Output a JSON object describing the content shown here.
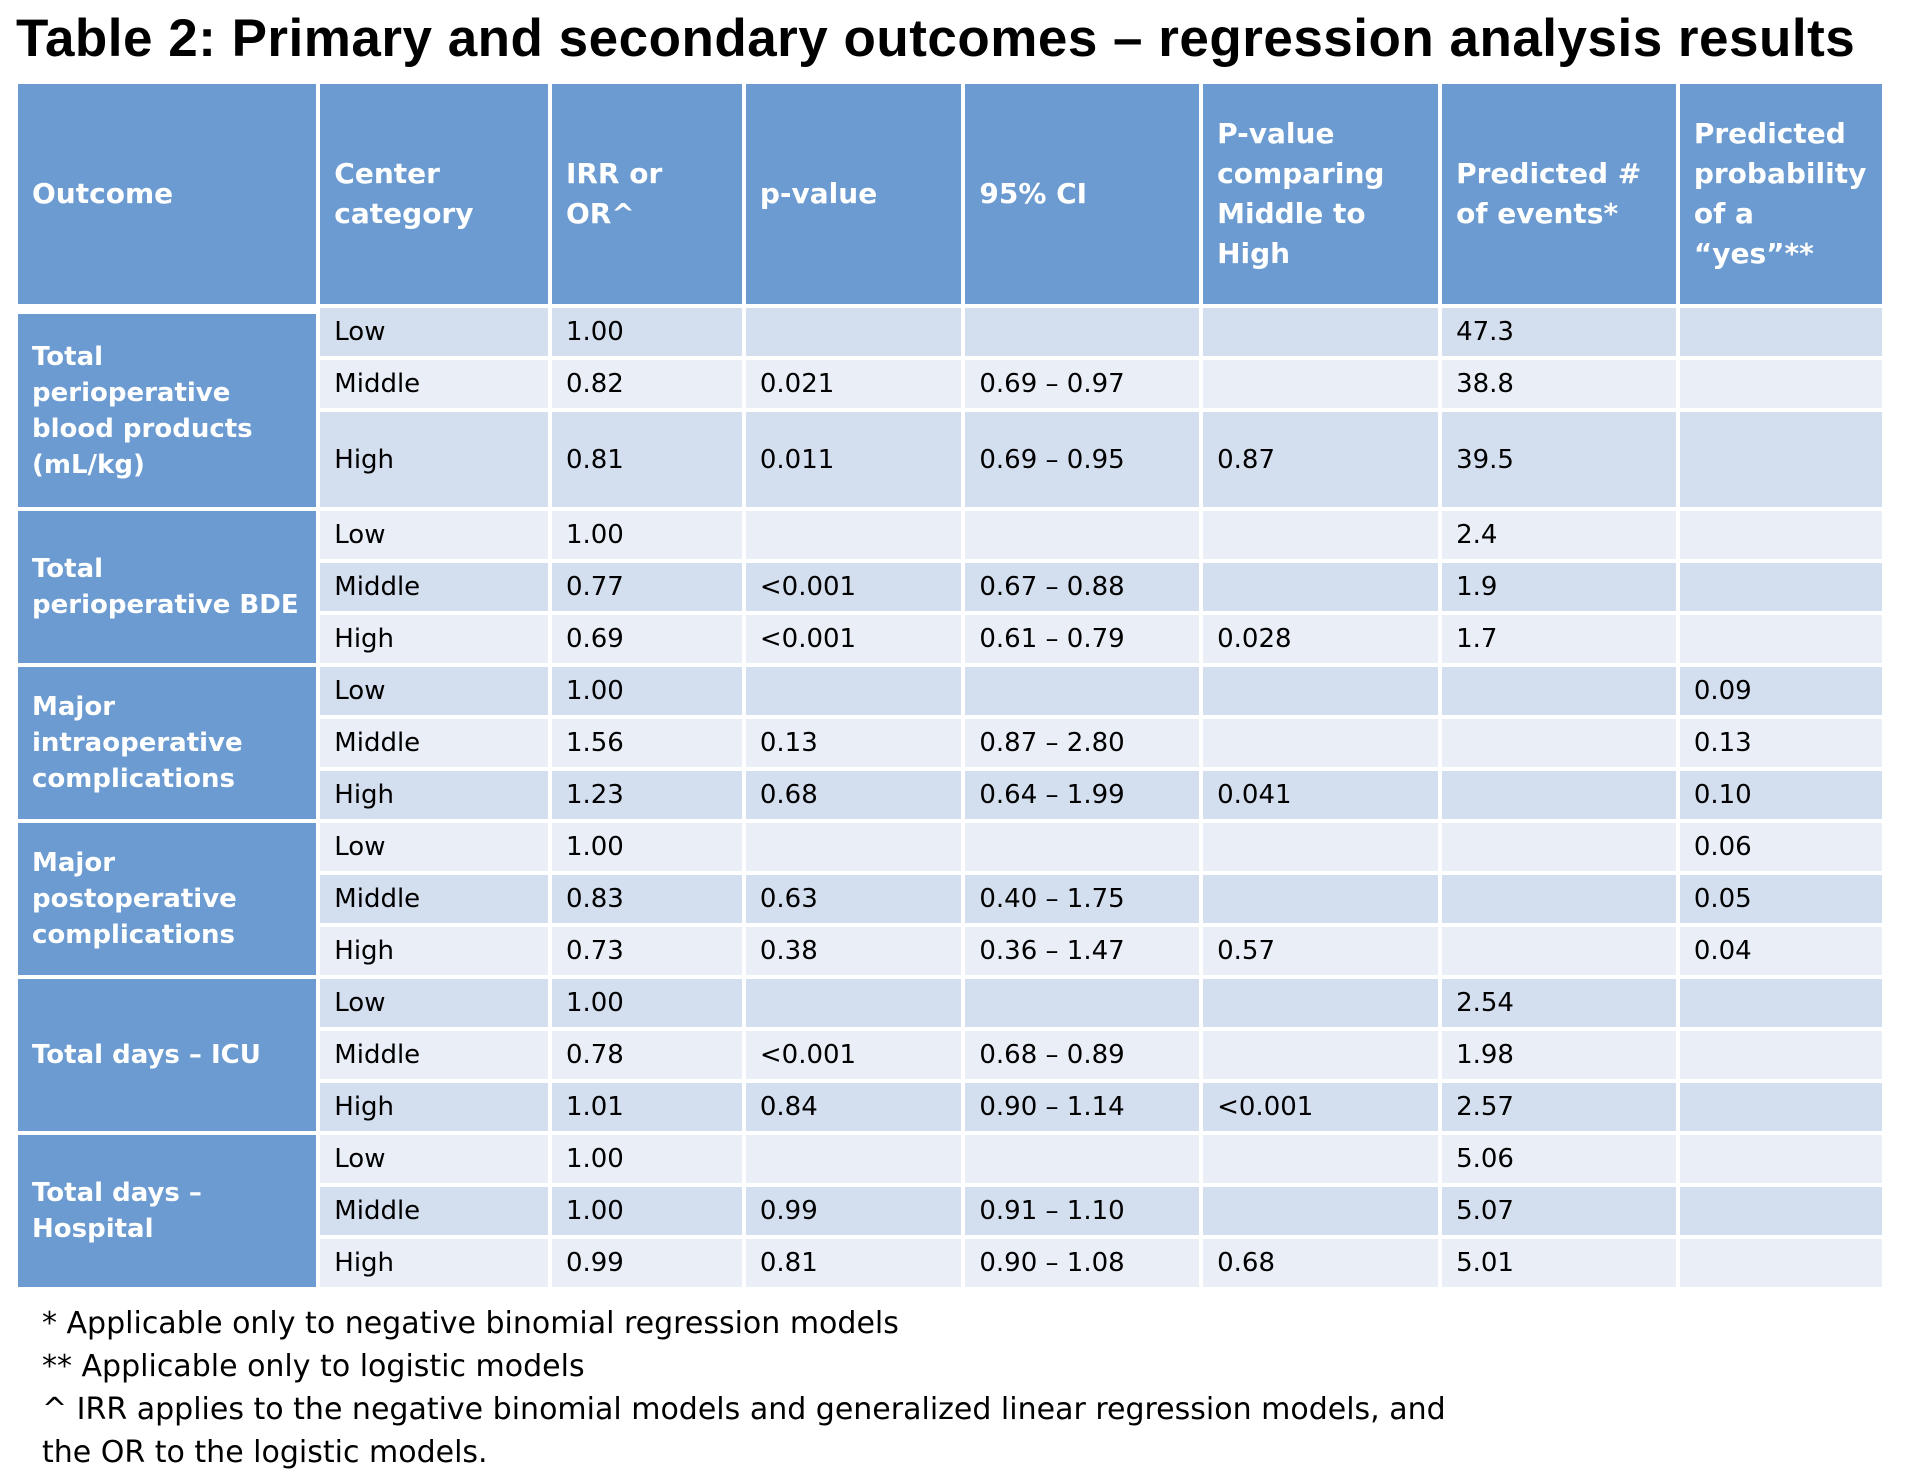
{
  "title": "Table 2: Primary and secondary outcomes – regression analysis results",
  "headers": [
    "Outcome",
    "Center category",
    "IRR or OR^",
    "p-value",
    "95% CI",
    "P-value comparing Middle to High",
    "Predicted # of events*",
    "Predicted probability of a “yes”**"
  ],
  "groups": [
    {
      "outcome": "Total perioperative blood products (mL/kg)",
      "rows": [
        {
          "category": "Low",
          "ratio": "1.00",
          "p": "",
          "ci": "",
          "p_mid_high": "",
          "events": "47.3",
          "prob": ""
        },
        {
          "category": "Middle",
          "ratio": "0.82",
          "p": "0.021",
          "ci": "0.69 – 0.97",
          "p_mid_high": "",
          "events": "38.8",
          "prob": ""
        },
        {
          "category": "High",
          "ratio": "0.81",
          "p": "0.011",
          "ci": "0.69 – 0.95",
          "p_mid_high": "0.87",
          "events": "39.5",
          "prob": ""
        }
      ]
    },
    {
      "outcome": "Total perioperative BDE",
      "rows": [
        {
          "category": "Low",
          "ratio": "1.00",
          "p": "",
          "ci": "",
          "p_mid_high": "",
          "events": "2.4",
          "prob": ""
        },
        {
          "category": "Middle",
          "ratio": "0.77",
          "p": "<0.001",
          "ci": "0.67 – 0.88",
          "p_mid_high": "",
          "events": "1.9",
          "prob": ""
        },
        {
          "category": "High",
          "ratio": "0.69",
          "p": "<0.001",
          "ci": "0.61 – 0.79",
          "p_mid_high": "0.028",
          "events": "1.7",
          "prob": ""
        }
      ]
    },
    {
      "outcome": "Major intraoperative complications",
      "rows": [
        {
          "category": "Low",
          "ratio": "1.00",
          "p": "",
          "ci": "",
          "p_mid_high": "",
          "events": "",
          "prob": "0.09"
        },
        {
          "category": "Middle",
          "ratio": "1.56",
          "p": "0.13",
          "ci": "0.87 – 2.80",
          "p_mid_high": "",
          "events": "",
          "prob": "0.13"
        },
        {
          "category": "High",
          "ratio": "1.23",
          "p": "0.68",
          "ci": "0.64 – 1.99",
          "p_mid_high": "0.041",
          "events": "",
          "prob": "0.10"
        }
      ]
    },
    {
      "outcome": "Major postoperative complications",
      "rows": [
        {
          "category": "Low",
          "ratio": "1.00",
          "p": "",
          "ci": "",
          "p_mid_high": "",
          "events": "",
          "prob": "0.06"
        },
        {
          "category": "Middle",
          "ratio": "0.83",
          "p": "0.63",
          "ci": "0.40 – 1.75",
          "p_mid_high": "",
          "events": "",
          "prob": "0.05"
        },
        {
          "category": "High",
          "ratio": "0.73",
          "p": "0.38",
          "ci": "0.36 – 1.47",
          "p_mid_high": "0.57",
          "events": "",
          "prob": "0.04"
        }
      ]
    },
    {
      "outcome": "Total days – ICU",
      "rows": [
        {
          "category": "Low",
          "ratio": "1.00",
          "p": "",
          "ci": "",
          "p_mid_high": "",
          "events": "2.54",
          "prob": ""
        },
        {
          "category": "Middle",
          "ratio": "0.78",
          "p": "<0.001",
          "ci": "0.68 – 0.89",
          "p_mid_high": "",
          "events": "1.98",
          "prob": ""
        },
        {
          "category": "High",
          "ratio": "1.01",
          "p": "0.84",
          "ci": "0.90 – 1.14",
          "p_mid_high": "<0.001",
          "events": "2.57",
          "prob": ""
        }
      ]
    },
    {
      "outcome": "Total days – Hospital",
      "rows": [
        {
          "category": "Low",
          "ratio": "1.00",
          "p": "",
          "ci": "",
          "p_mid_high": "",
          "events": "5.06",
          "prob": ""
        },
        {
          "category": "Middle",
          "ratio": "1.00",
          "p": "0.99",
          "ci": "0.91 – 1.10",
          "p_mid_high": "",
          "events": "5.07",
          "prob": ""
        },
        {
          "category": "High",
          "ratio": "0.99",
          "p": "0.81",
          "ci": "0.90 – 1.08",
          "p_mid_high": "0.68",
          "events": "5.01",
          "prob": ""
        }
      ]
    }
  ],
  "footnotes": [
    "* Applicable only to negative binomial regression models",
    "** Applicable only to logistic models",
    "^ IRR applies to the negative binomial models and generalized linear regression models, and",
    "the OR to the logistic models."
  ],
  "colors": {
    "header_bg": "#6b9bd0",
    "row_dark": "#d3deee",
    "row_light": "#e9eef7"
  }
}
